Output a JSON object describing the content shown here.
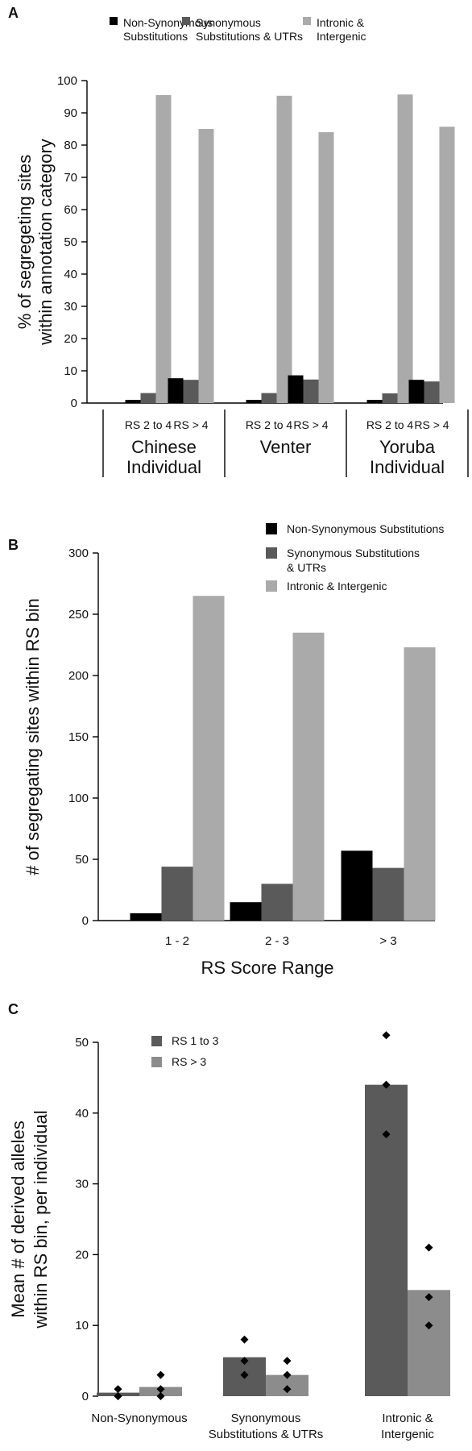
{
  "colors": {
    "black": "#000000",
    "dark": "#5a5a5a",
    "light": "#aaaaaa",
    "medium": "#8c8c8c"
  },
  "chart_data": [
    {
      "panel": "A",
      "type": "bar",
      "ylabel_lines": [
        "% of segregeting sites",
        "within annotation category"
      ],
      "ylim": [
        0,
        100
      ],
      "yticks": [
        0,
        10,
        20,
        30,
        40,
        50,
        60,
        70,
        80,
        90,
        100
      ],
      "legend_position": "top",
      "series": [
        {
          "name_lines": [
            "Non-Synonymous",
            "Substitutions"
          ],
          "name": "Non-Synonymous Substitutions",
          "color": "black",
          "values": [
            1,
            7.7,
            1,
            8.6,
            1,
            7.2
          ]
        },
        {
          "name_lines": [
            "Synonymous",
            "Substitutions & UTRs"
          ],
          "name": "Synonymous Substitutions & UTRs",
          "color": "dark",
          "values": [
            3.1,
            7.2,
            3.1,
            7.3,
            3.0,
            6.7
          ]
        },
        {
          "name_lines": [
            "Intronic &",
            "Intergenic"
          ],
          "name": "Intronic & Intergenic",
          "color": "light",
          "values": [
            95.5,
            85,
            95.3,
            84,
            95.7,
            85.7
          ]
        }
      ],
      "categories": [
        "RS 2 to 4",
        "RS > 4",
        "RS 2 to 4",
        "RS > 4",
        "RS 2 to 4",
        "RS > 4"
      ],
      "groups": [
        {
          "label_lines": [
            "Chinese",
            "Individual"
          ]
        },
        {
          "label_lines": [
            "Venter"
          ]
        },
        {
          "label_lines": [
            "Yoruba",
            "Individual"
          ]
        }
      ]
    },
    {
      "panel": "B",
      "type": "bar",
      "ylabel": "# of segregating sites within RS bin",
      "xlabel": "RS Score Range",
      "ylim": [
        0,
        300
      ],
      "yticks": [
        0,
        50,
        100,
        150,
        200,
        250,
        300
      ],
      "categories": [
        "1 - 2",
        "2 - 3",
        "> 3"
      ],
      "legend_position": "top-right",
      "series": [
        {
          "name_lines": [
            "Non-Synonymous Substitutions"
          ],
          "name": "Non-Synonymous Substitutions",
          "color": "black",
          "values": [
            6,
            15,
            57
          ]
        },
        {
          "name_lines": [
            "Synonymous Substitutions",
            "& UTRs"
          ],
          "name": "Synonymous Substitutions & UTRs",
          "color": "dark",
          "values": [
            44,
            30,
            43
          ]
        },
        {
          "name_lines": [
            "Intronic & Intergenic"
          ],
          "name": "Intronic & Intergenic",
          "color": "light",
          "values": [
            265,
            235,
            223
          ]
        }
      ]
    },
    {
      "panel": "C",
      "type": "bar",
      "ylabel_lines": [
        "Mean # of derived alleles",
        "within RS bin, per individual"
      ],
      "ylim": [
        0,
        50
      ],
      "yticks": [
        0,
        10,
        20,
        30,
        40,
        50
      ],
      "legend_position": "top-left",
      "categories": [
        {
          "label_lines": [
            "Non-Synonymous"
          ]
        },
        {
          "label_lines": [
            "Synonymous",
            "Substitutions & UTRs"
          ]
        },
        {
          "label_lines": [
            "Intronic &",
            "Intergenic"
          ]
        }
      ],
      "series": [
        {
          "name": "RS 1 to 3",
          "color": "dark",
          "values": [
            0.5,
            5.5,
            44
          ],
          "points": [
            [
              1,
              0,
              0
            ],
            [
              8,
              5,
              3
            ],
            [
              51,
              44,
              37
            ]
          ]
        },
        {
          "name": "RS > 3",
          "color": "medium",
          "values": [
            1.3,
            3,
            15
          ],
          "points": [
            [
              3,
              1,
              0
            ],
            [
              5,
              3,
              1
            ],
            [
              21,
              14,
              10
            ]
          ]
        }
      ]
    }
  ]
}
